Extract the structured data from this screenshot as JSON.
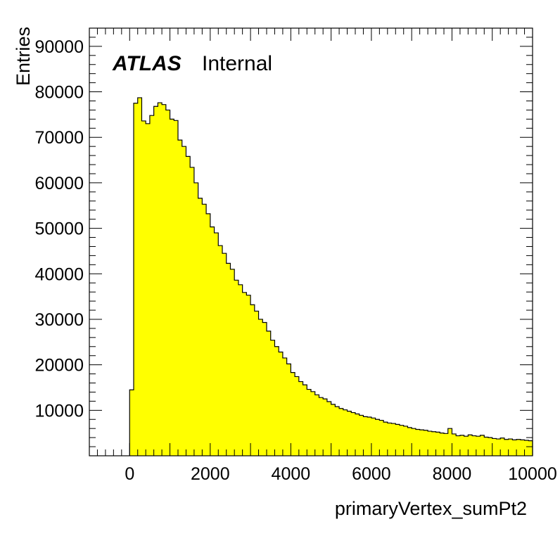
{
  "chart_data": {
    "type": "bar",
    "style": "histogram",
    "xlabel": "primaryVertex_sumPt2",
    "ylabel": "Entries",
    "annotation": {
      "experiment": "ATLAS",
      "status": "Internal"
    },
    "xlim": [
      -1000,
      10000
    ],
    "ylim": [
      0,
      94000
    ],
    "xticks": [
      0,
      2000,
      4000,
      6000,
      8000,
      10000
    ],
    "yticks": [
      10000,
      20000,
      30000,
      40000,
      50000,
      60000,
      70000,
      80000,
      90000
    ],
    "fill_color": "#ffff00",
    "line_color": "#000000",
    "bin_start": 0,
    "bin_width": 100,
    "values": [
      14500,
      77500,
      78700,
      73600,
      73000,
      74800,
      76800,
      77600,
      77200,
      76000,
      74000,
      73700,
      69400,
      68000,
      65800,
      63400,
      60000,
      56600,
      55300,
      53200,
      50300,
      49000,
      46200,
      44500,
      42300,
      41000,
      38600,
      37600,
      35900,
      35300,
      33200,
      31800,
      30000,
      29300,
      27400,
      25400,
      24000,
      22800,
      21500,
      20200,
      18300,
      17400,
      16300,
      15600,
      14600,
      14100,
      13400,
      12800,
      12500,
      11900,
      11300,
      10800,
      10400,
      10100,
      9800,
      9500,
      9200,
      8900,
      8600,
      8500,
      8300,
      8000,
      7800,
      7400,
      7200,
      7100,
      6900,
      6700,
      6500,
      6200,
      6000,
      5800,
      5700,
      5600,
      5400,
      5300,
      5200,
      5000,
      4900,
      6000,
      4800,
      4400,
      4500,
      4300,
      4600,
      4400,
      4300,
      4500,
      4100,
      4000,
      3800,
      3700,
      3900,
      3600,
      3700,
      3500,
      3600,
      3500,
      3400,
      3300
    ]
  }
}
